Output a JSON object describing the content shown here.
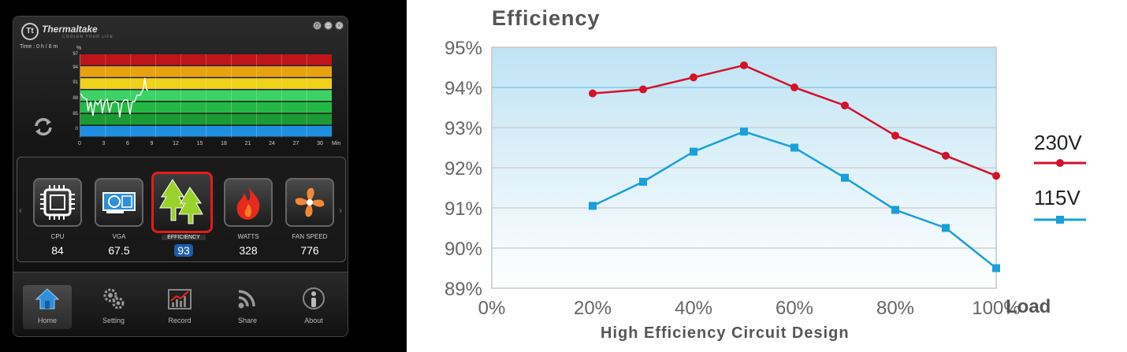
{
  "app": {
    "brand": "Thermaltake",
    "tagline": "COOLER YOUR LIFE",
    "time_readout": "Time : 0 h / 8 m",
    "graph": {
      "unit": "%",
      "y_ticks": [
        "97",
        "94",
        "91",
        "88",
        "85",
        "0"
      ],
      "x_ticks": [
        "0",
        "3",
        "6",
        "9",
        "12",
        "15",
        "18",
        "21",
        "24",
        "27",
        "30"
      ],
      "x_unit": "Min",
      "bands": [
        "#c0141b",
        "#e8a210",
        "#f0d21a",
        "#3cd265",
        "#25b847",
        "#1a9a34",
        "#1f8fe0"
      ],
      "line_color": "#ffffff"
    },
    "metrics": [
      {
        "label": "CPU",
        "value": "84"
      },
      {
        "label": "VGA",
        "value": "67.5"
      },
      {
        "label": "EFFICIENCY",
        "value": "93"
      },
      {
        "label": "WATTS",
        "value": "328"
      },
      {
        "label": "FAN SPEED",
        "value": "776"
      }
    ],
    "bottom_nav": [
      {
        "label": "Home"
      },
      {
        "label": "Setting"
      },
      {
        "label": "Record"
      },
      {
        "label": "Share"
      },
      {
        "label": "About"
      }
    ],
    "accent": "#e51b1b"
  },
  "chart_data": {
    "type": "line",
    "title": "Efficiency",
    "subtitle": "High Efficiency Circuit Design",
    "xlabel": "Load",
    "ylabel": "",
    "x_ticks": [
      "0%",
      "20%",
      "40%",
      "60%",
      "80%",
      "100%"
    ],
    "y_ticks": [
      "95%",
      "94%",
      "93%",
      "92%",
      "91%",
      "90%",
      "89%"
    ],
    "xlim": [
      0,
      100
    ],
    "ylim": [
      89,
      95
    ],
    "x": [
      20,
      30,
      40,
      50,
      60,
      70,
      80,
      90,
      100
    ],
    "series": [
      {
        "name": "230V",
        "color": "#d3122b",
        "marker": "circle",
        "values": [
          93.85,
          93.95,
          94.25,
          94.55,
          94.0,
          93.55,
          92.8,
          92.3,
          91.8
        ]
      },
      {
        "name": "115V",
        "color": "#1a9fdb",
        "marker": "square",
        "values": [
          91.05,
          91.65,
          92.4,
          92.9,
          92.5,
          91.75,
          90.95,
          90.5,
          89.5
        ]
      }
    ],
    "grid": true,
    "legend_placement": "right"
  }
}
